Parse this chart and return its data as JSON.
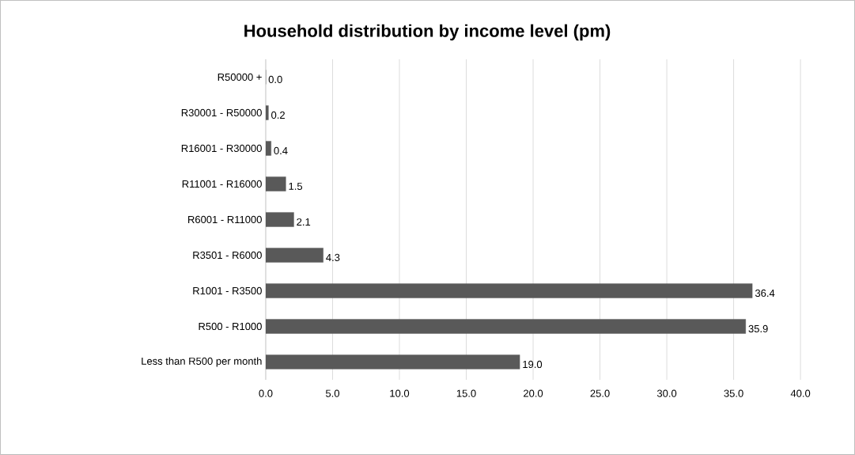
{
  "chart_data": {
    "type": "bar",
    "orientation": "horizontal",
    "title": "Household distribution by income level (pm)",
    "categories": [
      "R50000 +",
      "R30001 - R50000",
      "R16001 - R30000",
      "R11001 - R16000",
      "R6001 - R11000",
      "R3501 - R6000",
      "R1001 - R3500",
      "R500 - R1000",
      "Less than R500 per month"
    ],
    "values": [
      0.0,
      0.2,
      0.4,
      1.5,
      2.1,
      4.3,
      36.4,
      35.9,
      19.0
    ],
    "value_labels": [
      "0.0",
      "0.2",
      "0.4",
      "1.5",
      "2.1",
      "4.3",
      "36.4",
      "35.9",
      "19.0"
    ],
    "color": "#595959",
    "xlim": [
      0,
      40
    ],
    "xticks": [
      {
        "value": 0,
        "label": "0.0"
      },
      {
        "value": 5,
        "label": "5.0"
      },
      {
        "value": 10,
        "label": "10.0"
      },
      {
        "value": 15,
        "label": "15.0"
      },
      {
        "value": 20,
        "label": "20.0"
      },
      {
        "value": 25,
        "label": "25.0"
      },
      {
        "value": 30,
        "label": "30.0"
      },
      {
        "value": 35,
        "label": "35.0"
      },
      {
        "value": 40,
        "label": "40.0"
      }
    ],
    "grid": "x"
  }
}
